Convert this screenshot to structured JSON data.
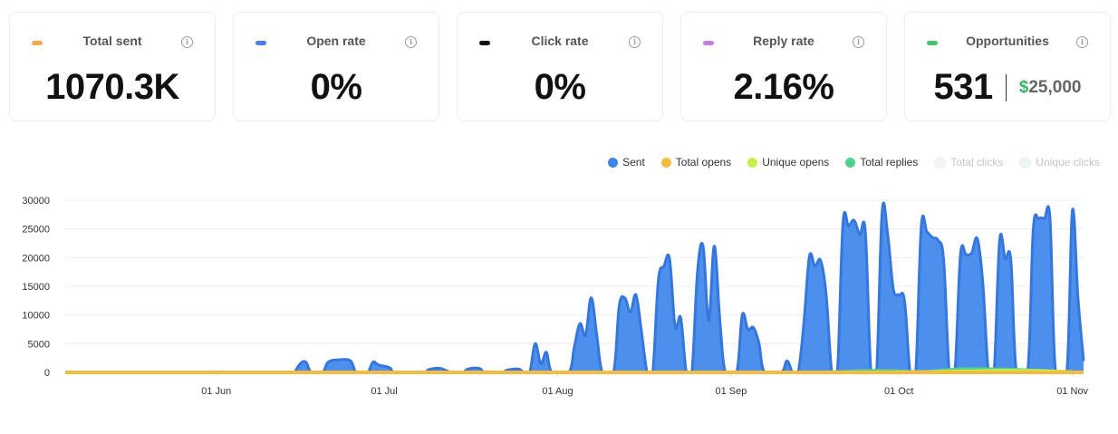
{
  "cards": [
    {
      "label": "Total sent",
      "value": "1070.3K",
      "dot_color": "#f0a94d"
    },
    {
      "label": "Open rate",
      "value": "0%",
      "dot_color": "#4d7ee6"
    },
    {
      "label": "Click rate",
      "value": "0%",
      "dot_color": "#111111"
    },
    {
      "label": "Reply rate",
      "value": "2.16%",
      "dot_color": "#c27ee6"
    },
    {
      "label": "Opportunities",
      "value": "531",
      "currency": "$",
      "amount": "25,000",
      "dot_color": "#47c26b"
    }
  ],
  "info_glyph": "i",
  "chart_data": {
    "type": "area",
    "title": "",
    "xlabel": "",
    "ylabel": "",
    "ylim": [
      0,
      30000
    ],
    "yticks": [
      "0",
      "5000",
      "10000",
      "15000",
      "20000",
      "25000",
      "30000"
    ],
    "xticks": [
      "01 Jun",
      "01 Jul",
      "01 Aug",
      "01 Sep",
      "01 Oct",
      "01 Nov"
    ],
    "x_range": [
      "2023-05-05",
      "2023-11-03"
    ],
    "grid": "horizontal",
    "legend_position": "top-right",
    "legend": [
      {
        "name": "Sent",
        "color": "#3d86ea",
        "visible": true
      },
      {
        "name": "Total opens",
        "color": "#f1bc41",
        "visible": true
      },
      {
        "name": "Unique opens",
        "color": "#c6ef4a",
        "visible": true
      },
      {
        "name": "Total replies",
        "color": "#4fd38b",
        "visible": true
      },
      {
        "name": "Total clicks",
        "color": "#f2f3f5",
        "visible": false
      },
      {
        "name": "Unique clicks",
        "color": "#eef6f2",
        "visible": false
      }
    ],
    "series": [
      {
        "name": "Sent",
        "color": "#3d86ea",
        "points": [
          [
            "2023-06-15",
            0
          ],
          [
            "2023-06-16",
            1500
          ],
          [
            "2023-06-17",
            1800
          ],
          [
            "2023-06-18",
            0
          ],
          [
            "2023-06-20",
            0
          ],
          [
            "2023-06-21",
            1800
          ],
          [
            "2023-06-23",
            2200
          ],
          [
            "2023-06-25",
            2000
          ],
          [
            "2023-06-26",
            0
          ],
          [
            "2023-06-28",
            0
          ],
          [
            "2023-06-29",
            1800
          ],
          [
            "2023-06-30",
            1300
          ],
          [
            "2023-07-02",
            800
          ],
          [
            "2023-07-03",
            0
          ],
          [
            "2023-07-08",
            0
          ],
          [
            "2023-07-09",
            500
          ],
          [
            "2023-07-11",
            700
          ],
          [
            "2023-07-13",
            0
          ],
          [
            "2023-07-15",
            0
          ],
          [
            "2023-07-16",
            600
          ],
          [
            "2023-07-18",
            700
          ],
          [
            "2023-07-19",
            0
          ],
          [
            "2023-07-22",
            0
          ],
          [
            "2023-07-23",
            400
          ],
          [
            "2023-07-25",
            600
          ],
          [
            "2023-07-26",
            0
          ],
          [
            "2023-07-27",
            0
          ],
          [
            "2023-07-28",
            5000
          ],
          [
            "2023-07-29",
            1500
          ],
          [
            "2023-07-30",
            3500
          ],
          [
            "2023-07-31",
            0
          ],
          [
            "2023-08-03",
            0
          ],
          [
            "2023-08-04",
            4500
          ],
          [
            "2023-08-05",
            8500
          ],
          [
            "2023-08-06",
            6500
          ],
          [
            "2023-08-07",
            13000
          ],
          [
            "2023-08-08",
            6500
          ],
          [
            "2023-08-09",
            0
          ],
          [
            "2023-08-11",
            0
          ],
          [
            "2023-08-12",
            11500
          ],
          [
            "2023-08-13",
            13000
          ],
          [
            "2023-08-14",
            10500
          ],
          [
            "2023-08-15",
            13500
          ],
          [
            "2023-08-16",
            7000
          ],
          [
            "2023-08-17",
            0
          ],
          [
            "2023-08-18",
            0
          ],
          [
            "2023-08-19",
            16000
          ],
          [
            "2023-08-20",
            18500
          ],
          [
            "2023-08-21",
            19800
          ],
          [
            "2023-08-22",
            8000
          ],
          [
            "2023-08-23",
            9500
          ],
          [
            "2023-08-24",
            0
          ],
          [
            "2023-08-25",
            0
          ],
          [
            "2023-08-26",
            17500
          ],
          [
            "2023-08-27",
            22000
          ],
          [
            "2023-08-28",
            9000
          ],
          [
            "2023-08-29",
            22000
          ],
          [
            "2023-08-30",
            9000
          ],
          [
            "2023-08-31",
            0
          ],
          [
            "2023-09-02",
            0
          ],
          [
            "2023-09-03",
            10000
          ],
          [
            "2023-09-04",
            7500
          ],
          [
            "2023-09-05",
            7800
          ],
          [
            "2023-09-06",
            5000
          ],
          [
            "2023-09-07",
            0
          ],
          [
            "2023-09-10",
            0
          ],
          [
            "2023-09-11",
            2000
          ],
          [
            "2023-09-12",
            0
          ],
          [
            "2023-09-13",
            0
          ],
          [
            "2023-09-14",
            8500
          ],
          [
            "2023-09-15",
            20200
          ],
          [
            "2023-09-16",
            18500
          ],
          [
            "2023-09-17",
            19500
          ],
          [
            "2023-09-18",
            13500
          ],
          [
            "2023-09-19",
            0
          ],
          [
            "2023-09-20",
            0
          ],
          [
            "2023-09-21",
            26000
          ],
          [
            "2023-09-22",
            25500
          ],
          [
            "2023-09-23",
            26500
          ],
          [
            "2023-09-24",
            24000
          ],
          [
            "2023-09-25",
            24500
          ],
          [
            "2023-09-26",
            0
          ],
          [
            "2023-09-27",
            0
          ],
          [
            "2023-09-28",
            28000
          ],
          [
            "2023-09-29",
            24000
          ],
          [
            "2023-09-30",
            14500
          ],
          [
            "2023-10-01",
            13500
          ],
          [
            "2023-10-02",
            12500
          ],
          [
            "2023-10-03",
            0
          ],
          [
            "2023-10-04",
            0
          ],
          [
            "2023-10-05",
            25500
          ],
          [
            "2023-10-06",
            24500
          ],
          [
            "2023-10-07",
            23500
          ],
          [
            "2023-10-08",
            23000
          ],
          [
            "2023-10-09",
            19500
          ],
          [
            "2023-10-10",
            0
          ],
          [
            "2023-10-11",
            0
          ],
          [
            "2023-10-12",
            20500
          ],
          [
            "2023-10-13",
            20500
          ],
          [
            "2023-10-14",
            20800
          ],
          [
            "2023-10-15",
            23300
          ],
          [
            "2023-10-16",
            15500
          ],
          [
            "2023-10-17",
            0
          ],
          [
            "2023-10-18",
            0
          ],
          [
            "2023-10-19",
            23000
          ],
          [
            "2023-10-20",
            19800
          ],
          [
            "2023-10-21",
            19600
          ],
          [
            "2023-10-22",
            0
          ],
          [
            "2023-10-24",
            0
          ],
          [
            "2023-10-25",
            24800
          ],
          [
            "2023-10-26",
            26800
          ],
          [
            "2023-10-27",
            26800
          ],
          [
            "2023-10-28",
            26800
          ],
          [
            "2023-10-29",
            0
          ],
          [
            "2023-10-31",
            0
          ],
          [
            "2023-11-01",
            28200
          ],
          [
            "2023-11-02",
            13000
          ],
          [
            "2023-11-03",
            2000
          ]
        ]
      },
      {
        "name": "Total replies",
        "color": "#4fd38b",
        "points": [
          [
            "2023-05-05",
            0
          ],
          [
            "2023-09-01",
            0
          ],
          [
            "2023-09-26",
            400
          ],
          [
            "2023-10-05",
            200
          ],
          [
            "2023-10-13",
            700
          ],
          [
            "2023-10-24",
            500
          ],
          [
            "2023-11-03",
            0
          ]
        ]
      },
      {
        "name": "Unique opens",
        "color": "#c6ef4a",
        "points": [
          [
            "2023-05-05",
            0
          ],
          [
            "2023-09-15",
            100
          ],
          [
            "2023-10-10",
            250
          ],
          [
            "2023-10-20",
            400
          ],
          [
            "2023-10-30",
            250
          ],
          [
            "2023-11-03",
            0
          ]
        ]
      },
      {
        "name": "Total opens",
        "color": "#f1bc41",
        "points": [
          [
            "2023-05-05",
            0
          ],
          [
            "2023-11-03",
            0
          ]
        ]
      }
    ]
  }
}
